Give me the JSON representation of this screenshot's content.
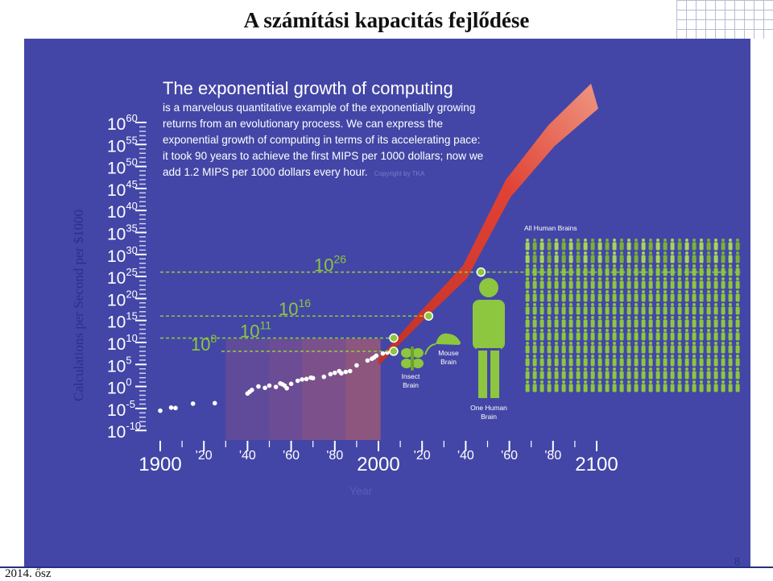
{
  "slide": {
    "title": "A számítási kapacitás fejlődése",
    "footer_left": "2014. ősz",
    "page_number": "8"
  },
  "intro": {
    "heading": "The exponential growth of computing",
    "body": "is a marvelous quantitative example of the exponentially growing returns from an evolutionary process. We can express the exponential growth of computing in terms of its accelerating pace: it took 90 years to achieve the first MIPS per 1000 dollars; now we add 1.2 MIPS per 1000 dollars every hour.",
    "source": "Copyright by TKA"
  },
  "colors": {
    "panel": "#4346a6",
    "accent_green": "#8dc63f",
    "curve_red": "#e8412e",
    "title_text": "#111111"
  },
  "icons": [
    "insect-icon",
    "mouse-icon",
    "human-icon",
    "crowd-icon"
  ],
  "chart_data": {
    "type": "scatter",
    "title": "",
    "xlabel": "Year",
    "ylabel": "Calculations per Second per $1000",
    "y_scale": "log10",
    "x_range": [
      1900,
      2100
    ],
    "y_exponent_range": [
      -10,
      60
    ],
    "y_ticks": [
      {
        "base": "10",
        "exp": "60",
        "value": 60
      },
      {
        "base": "10",
        "exp": "55",
        "value": 55
      },
      {
        "base": "10",
        "exp": "50",
        "value": 50
      },
      {
        "base": "10",
        "exp": "45",
        "value": 45
      },
      {
        "base": "10",
        "exp": "40",
        "value": 40
      },
      {
        "base": "10",
        "exp": "35",
        "value": 35
      },
      {
        "base": "10",
        "exp": "30",
        "value": 30
      },
      {
        "base": "10",
        "exp": "25",
        "value": 25
      },
      {
        "base": "10",
        "exp": "20",
        "value": 20
      },
      {
        "base": "10",
        "exp": "15",
        "value": 15
      },
      {
        "base": "10",
        "exp": "10",
        "value": 10
      },
      {
        "base": "10",
        "exp": "5",
        "value": 5
      },
      {
        "base": "10",
        "exp": "0",
        "value": 0
      },
      {
        "base": "10",
        "exp": "-5",
        "value": -5
      },
      {
        "base": "10",
        "exp": "-10",
        "value": -10
      }
    ],
    "x_ticks": [
      {
        "label": "1900",
        "year": 1900,
        "major": true
      },
      {
        "label": "'20",
        "year": 1920,
        "major": false
      },
      {
        "label": "'40",
        "year": 1940,
        "major": false
      },
      {
        "label": "'60",
        "year": 1960,
        "major": false
      },
      {
        "label": "'80",
        "year": 1980,
        "major": false
      },
      {
        "label": "2000",
        "year": 2000,
        "major": true
      },
      {
        "label": "'20",
        "year": 2020,
        "major": false
      },
      {
        "label": "'40",
        "year": 2040,
        "major": false
      },
      {
        "label": "'60",
        "year": 2060,
        "major": false
      },
      {
        "label": "'80",
        "year": 2080,
        "major": false
      },
      {
        "label": "2100",
        "year": 2100,
        "major": true
      }
    ],
    "historical_points": [
      [
        1900,
        -5.5
      ],
      [
        1905,
        -4.8
      ],
      [
        1907,
        -4.9
      ],
      [
        1915,
        -3.9
      ],
      [
        1925,
        -3.8
      ],
      [
        1940,
        -1.6
      ],
      [
        1941,
        -1.2
      ],
      [
        1942,
        -0.8
      ],
      [
        1945,
        0.0
      ],
      [
        1948,
        -0.3
      ],
      [
        1950,
        0.2
      ],
      [
        1953,
        -0.1
      ],
      [
        1955,
        0.7
      ],
      [
        1956,
        0.5
      ],
      [
        1957,
        0.2
      ],
      [
        1958,
        -0.4
      ],
      [
        1960,
        0.6
      ],
      [
        1963,
        1.3
      ],
      [
        1965,
        1.6
      ],
      [
        1967,
        1.7
      ],
      [
        1969,
        2.0
      ],
      [
        1970,
        1.9
      ],
      [
        1975,
        2.2
      ],
      [
        1978,
        2.8
      ],
      [
        1980,
        3.1
      ],
      [
        1982,
        3.5
      ],
      [
        1983,
        3.0
      ],
      [
        1985,
        3.3
      ],
      [
        1987,
        3.5
      ],
      [
        1990,
        4.8
      ],
      [
        1995,
        5.9
      ],
      [
        1997,
        6.3
      ],
      [
        1998,
        6.6
      ],
      [
        1999,
        7.0
      ],
      [
        2002,
        7.5
      ],
      [
        2004,
        7.7
      ]
    ],
    "projection_curve": [
      [
        2000,
        5.5
      ],
      [
        2020,
        16
      ],
      [
        2040,
        26
      ],
      [
        2060,
        45
      ],
      [
        2080,
        57
      ],
      [
        2100,
        66
      ]
    ],
    "milestones": [
      {
        "label": "Insect Brain",
        "base": "10",
        "exp": "8",
        "year": 2007,
        "value": 8
      },
      {
        "label": "Mouse Brain",
        "base": "10",
        "exp": "11",
        "year": 2007,
        "value": 11
      },
      {
        "label": "",
        "base": "10",
        "exp": "16",
        "year": 2023,
        "value": 16
      },
      {
        "label": "One Human Brain",
        "base": "10",
        "exp": "26",
        "year": 2047,
        "value": 26
      },
      {
        "label": "All Human Brains",
        "year": 2100,
        "value": 55
      }
    ],
    "era_bands": [
      {
        "from": 1930,
        "to": 1950,
        "color": "#6a4d95"
      },
      {
        "from": 1950,
        "to": 1965,
        "color": "#7a4f8e"
      },
      {
        "from": 1965,
        "to": 1985,
        "color": "#8f5582"
      },
      {
        "from": 1985,
        "to": 2001,
        "color": "#a45c72"
      }
    ],
    "grid": false,
    "legend": "none"
  }
}
